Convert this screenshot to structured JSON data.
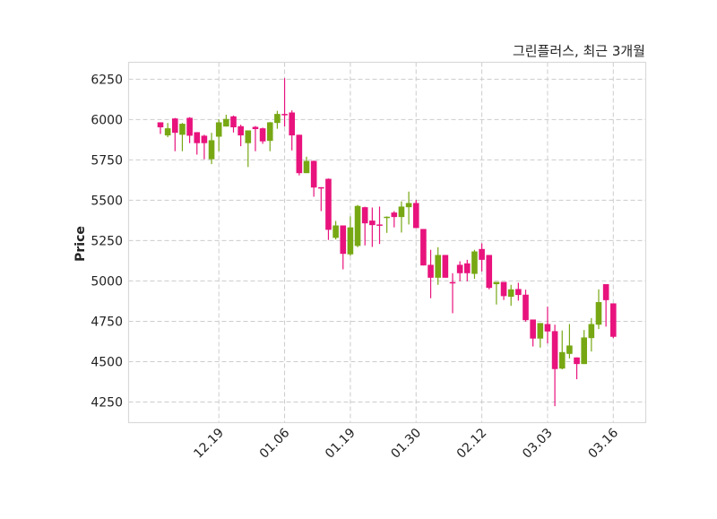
{
  "chart_data": {
    "type": "candlestick",
    "title": "그린플러스, 최근 3개월",
    "xlabel": "",
    "ylabel": "Price",
    "ylim": [
      4122,
      6355
    ],
    "yticks": [
      4250,
      4500,
      4750,
      5000,
      5250,
      5500,
      5750,
      6000,
      6250
    ],
    "xticks": [
      {
        "index": 8,
        "label": "12.19"
      },
      {
        "index": 17,
        "label": "01.06"
      },
      {
        "index": 26,
        "label": "01.19"
      },
      {
        "index": 35,
        "label": "01.30"
      },
      {
        "index": 44,
        "label": "02.12"
      },
      {
        "index": 53,
        "label": "03.03"
      },
      {
        "index": 62,
        "label": "03.16"
      }
    ],
    "grid": true,
    "colors": {
      "up": "#77a814",
      "down": "#e8137d",
      "grid": "#cccccc",
      "frame": "#d9d9d9"
    },
    "ohlc_fields": [
      "open",
      "high",
      "low",
      "close"
    ],
    "ohlc": [
      [
        5983,
        5983,
        5911,
        5952
      ],
      [
        5902,
        5979,
        5891,
        5946
      ],
      [
        6007,
        6010,
        5804,
        5918
      ],
      [
        5906,
        5979,
        5804,
        5974
      ],
      [
        6011,
        6015,
        5854,
        5900
      ],
      [
        5922,
        5922,
        5783,
        5854
      ],
      [
        5900,
        5906,
        5754,
        5854
      ],
      [
        5754,
        5918,
        5724,
        5872
      ],
      [
        5894,
        6002,
        5804,
        5983
      ],
      [
        5957,
        6030,
        5957,
        6004
      ],
      [
        6020,
        6025,
        5920,
        5952
      ],
      [
        5959,
        5968,
        5835,
        5902
      ],
      [
        5854,
        5933,
        5706,
        5933
      ],
      [
        5955,
        5960,
        5804,
        5941
      ],
      [
        5946,
        5950,
        5850,
        5865
      ],
      [
        5868,
        5985,
        5804,
        5983
      ],
      [
        5979,
        6054,
        5943,
        6035
      ],
      [
        6035,
        6257,
        5957,
        6033
      ],
      [
        6044,
        6057,
        5809,
        5902
      ],
      [
        5906,
        5906,
        5654,
        5668
      ],
      [
        5668,
        5770,
        5668,
        5744
      ],
      [
        5744,
        5746,
        5522,
        5579
      ],
      [
        5581,
        5581,
        5433,
        5579
      ],
      [
        5633,
        5635,
        5254,
        5317
      ],
      [
        5267,
        5372,
        5257,
        5344
      ],
      [
        5344,
        5344,
        5072,
        5168
      ],
      [
        5165,
        5400,
        5156,
        5332
      ],
      [
        5217,
        5471,
        5209,
        5465
      ],
      [
        5457,
        5460,
        5220,
        5357
      ],
      [
        5374,
        5455,
        5211,
        5346
      ],
      [
        5350,
        5461,
        5229,
        5348
      ],
      [
        5394,
        5400,
        5298,
        5398
      ],
      [
        5424,
        5433,
        5332,
        5396
      ],
      [
        5396,
        5493,
        5300,
        5461
      ],
      [
        5457,
        5554,
        5350,
        5483
      ],
      [
        5483,
        5502,
        5328,
        5328
      ],
      [
        5322,
        5322,
        5096,
        5096
      ],
      [
        5100,
        5193,
        4893,
        5020
      ],
      [
        5020,
        5209,
        4976,
        5161
      ],
      [
        5161,
        5161,
        5020,
        5020
      ],
      [
        4993,
        5048,
        4800,
        4985
      ],
      [
        5100,
        5122,
        4998,
        5048
      ],
      [
        5109,
        5131,
        4998,
        5048
      ],
      [
        5044,
        5193,
        5013,
        5183
      ],
      [
        5198,
        5233,
        5059,
        5131
      ],
      [
        5161,
        5161,
        4948,
        4957
      ],
      [
        4980,
        4994,
        4854,
        4994
      ],
      [
        4994,
        4994,
        4882,
        4906
      ],
      [
        4902,
        4976,
        4846,
        4948
      ],
      [
        4950,
        4989,
        4878,
        4913
      ],
      [
        4915,
        4946,
        4748,
        4757
      ],
      [
        4761,
        4761,
        4594,
        4643
      ],
      [
        4643,
        4739,
        4587,
        4739
      ],
      [
        4733,
        4840,
        4613,
        4687
      ],
      [
        4689,
        4729,
        4224,
        4454
      ],
      [
        4457,
        4693,
        4452,
        4559
      ],
      [
        4548,
        4733,
        4520,
        4600
      ],
      [
        4526,
        4526,
        4391,
        4485
      ],
      [
        4485,
        4696,
        4485,
        4650
      ],
      [
        4646,
        4770,
        4563,
        4733
      ],
      [
        4729,
        4948,
        4702,
        4869
      ],
      [
        4980,
        4980,
        4717,
        4881
      ],
      [
        4861,
        4861,
        4646,
        4654
      ]
    ]
  }
}
